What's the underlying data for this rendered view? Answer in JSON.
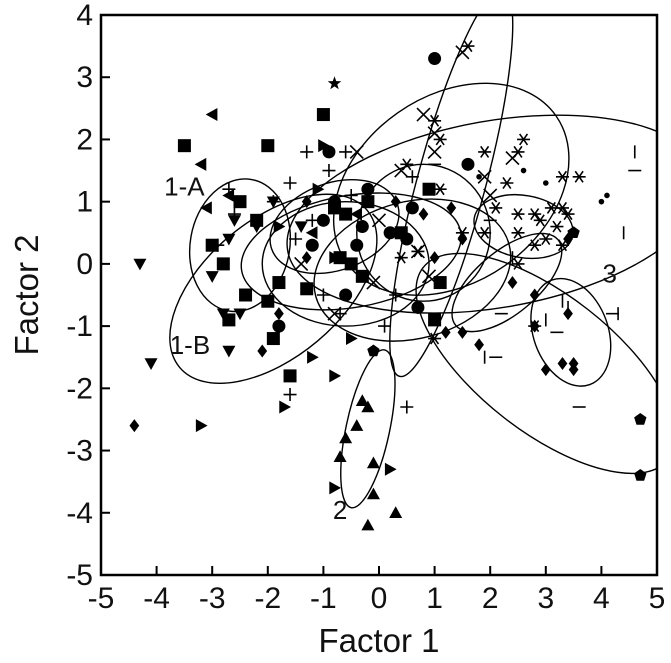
{
  "chart_data": {
    "type": "scatter",
    "xlabel": "Factor 1",
    "ylabel": "Factor 2",
    "xlim": [
      -5,
      5
    ],
    "ylim": [
      -5,
      4
    ],
    "xticks": [
      -5,
      -4,
      -3,
      -2,
      -1,
      0,
      1,
      2,
      3,
      4,
      5
    ],
    "yticks": [
      -5,
      -4,
      -3,
      -2,
      -1,
      0,
      1,
      2,
      3,
      4
    ],
    "grid": false,
    "legend": "none",
    "color": "#000000",
    "cluster_labels": [
      {
        "text": "1-A",
        "x": -3.5,
        "y": 1.1
      },
      {
        "text": "1-B",
        "x": -3.4,
        "y": -1.45
      },
      {
        "text": "2",
        "x": -0.7,
        "y": -4.1
      },
      {
        "text": "3",
        "x": 4.15,
        "y": -0.3
      }
    ],
    "ellipses": [
      {
        "cx": -2.5,
        "cy": 0.3,
        "rx": 1.2,
        "ry": 0.8,
        "angle": 80
      },
      {
        "cx": -1.9,
        "cy": -0.4,
        "rx": 2.2,
        "ry": 1.1,
        "angle": 40
      },
      {
        "cx": -0.8,
        "cy": 0.6,
        "rx": 1.2,
        "ry": 0.7,
        "angle": 20
      },
      {
        "cx": -0.5,
        "cy": 0.2,
        "rx": 2.0,
        "ry": 0.9,
        "angle": 10
      },
      {
        "cx": -0.6,
        "cy": 0.0,
        "rx": 1.5,
        "ry": 1.0,
        "angle": 0
      },
      {
        "cx": -0.2,
        "cy": -2.65,
        "rx": 1.45,
        "ry": 0.35,
        "angle": 78
      },
      {
        "cx": 1.3,
        "cy": 1.3,
        "rx": 3.6,
        "ry": 0.55,
        "angle": 75
      },
      {
        "cx": 1.3,
        "cy": 1.2,
        "rx": 2.3,
        "ry": 1.5,
        "angle": 35
      },
      {
        "cx": 2.1,
        "cy": 0.8,
        "rx": 3.8,
        "ry": 1.5,
        "angle": 10
      },
      {
        "cx": 0.8,
        "cy": 0.5,
        "rx": 1.2,
        "ry": 1.1,
        "angle": 0
      },
      {
        "cx": 0.6,
        "cy": -0.1,
        "rx": 1.8,
        "ry": 1.1,
        "angle": 15
      },
      {
        "cx": 3.0,
        "cy": -1.6,
        "rx": 2.8,
        "ry": 1.1,
        "angle": -38
      },
      {
        "cx": 3.45,
        "cy": -1.1,
        "rx": 1.0,
        "ry": 0.6,
        "angle": -70
      },
      {
        "cx": 2.3,
        "cy": -0.3,
        "rx": 1.2,
        "ry": 0.5,
        "angle": 40
      },
      {
        "cx": 2.6,
        "cy": 0.6,
        "rx": 0.9,
        "ry": 0.5,
        "angle": -10
      }
    ],
    "series": [
      {
        "marker": "square",
        "points": [
          [
            -3.5,
            1.9
          ],
          [
            -2,
            1.9
          ],
          [
            -1,
            2.4
          ],
          [
            -2.5,
            1.0
          ],
          [
            -3,
            0.3
          ],
          [
            -2.8,
            0.0
          ],
          [
            -2.4,
            -0.5
          ],
          [
            -2,
            -0.6
          ],
          [
            -1.8,
            -0.3
          ],
          [
            -1.3,
            -0.4
          ],
          [
            -0.8,
            0.9
          ],
          [
            -0.6,
            0.8
          ],
          [
            -0.2,
            1.0
          ],
          [
            0.4,
            0.5
          ],
          [
            0.9,
            1.2
          ],
          [
            1.1,
            -0.3
          ],
          [
            1,
            -0.9
          ],
          [
            -1.6,
            -1.8
          ],
          [
            -2.7,
            -0.9
          ],
          [
            -0.5,
            0.0
          ],
          [
            -0.3,
            -0.2
          ],
          [
            -1.9,
            -1.2
          ],
          [
            -2.2,
            0.7
          ],
          [
            -0.7,
            0.1
          ]
        ]
      },
      {
        "marker": "circle",
        "points": [
          [
            1.0,
            3.3
          ],
          [
            1.6,
            1.6
          ],
          [
            -0.9,
            1.8
          ],
          [
            -0.3,
            0.6
          ],
          [
            0.6,
            0.9
          ],
          [
            -0.8,
            1.0
          ],
          [
            -1.2,
            0.3
          ],
          [
            -0.6,
            -0.5
          ],
          [
            0.7,
            -0.7
          ],
          [
            -1.8,
            -1.0
          ],
          [
            -0.2,
            1.2
          ],
          [
            -1,
            0.7
          ],
          [
            -0.4,
            0.3
          ],
          [
            0.2,
            0.5
          ],
          [
            0.5,
            0.4
          ]
        ]
      },
      {
        "marker": "star",
        "points": [
          [
            -0.8,
            2.9
          ]
        ]
      },
      {
        "marker": "triangle-left",
        "points": [
          [
            -3,
            2.4
          ],
          [
            -3.2,
            1.6
          ],
          [
            -3.1,
            0.9
          ],
          [
            -2.7,
            1.1
          ],
          [
            -0.4,
            0.8
          ],
          [
            -1.2,
            0.5
          ]
        ]
      },
      {
        "marker": "triangle-right",
        "points": [
          [
            -1.0,
            1.9
          ],
          [
            -1.1,
            1.2
          ],
          [
            -1.8,
            0.6
          ],
          [
            -0.8,
            0.1
          ],
          [
            -1.2,
            -1.5
          ],
          [
            -0.8,
            -1.8
          ],
          [
            -1.7,
            -2.3
          ],
          [
            -3.2,
            -2.6
          ],
          [
            0.2,
            -3.3
          ],
          [
            -0.8,
            -3.6
          ],
          [
            -0.5,
            -1.2
          ]
        ]
      },
      {
        "marker": "triangle-down",
        "points": [
          [
            -4.3,
            0.0
          ],
          [
            -4.1,
            -1.6
          ],
          [
            -3,
            -0.2
          ],
          [
            -2.7,
            0.4
          ],
          [
            -2.6,
            0.7
          ],
          [
            -2.2,
            0.6
          ],
          [
            -2.8,
            -0.8
          ],
          [
            -2.5,
            -0.8
          ],
          [
            -2.7,
            -1.4
          ],
          [
            -1.4,
            0.6
          ],
          [
            -1.9,
            1.0
          ]
        ]
      },
      {
        "marker": "triangle-up",
        "points": [
          [
            -0.3,
            -2.2
          ],
          [
            -0.2,
            -2.3
          ],
          [
            -0.6,
            -2.8
          ],
          [
            -0.4,
            -2.6
          ],
          [
            -0.7,
            -3.1
          ],
          [
            -0.1,
            -3.2
          ],
          [
            -0.1,
            -3.7
          ],
          [
            0.3,
            -4.0
          ],
          [
            -0.2,
            -4.2
          ]
        ]
      },
      {
        "marker": "diamond",
        "points": [
          [
            -4.4,
            -2.6
          ],
          [
            -1.3,
            1.0
          ],
          [
            -2.1,
            -1.4
          ],
          [
            -1.8,
            -0.8
          ],
          [
            -1.3,
            0.1
          ],
          [
            0.8,
            0.8
          ],
          [
            1.0,
            0.1
          ],
          [
            1.3,
            0.9
          ],
          [
            1.5,
            0.4
          ],
          [
            1.5,
            -1.1
          ],
          [
            2.4,
            -0.3
          ],
          [
            2.8,
            -1.0
          ],
          [
            3.0,
            -1.7
          ],
          [
            3.3,
            -1.6
          ],
          [
            3.5,
            -1.6
          ],
          [
            3.5,
            -1.7
          ],
          [
            3.4,
            -0.8
          ],
          [
            3.4,
            0.4
          ],
          [
            2.8,
            -0.5
          ],
          [
            1.8,
            -1.3
          ],
          [
            1.2,
            -1.1
          ],
          [
            0.3,
            1.0
          ]
        ]
      },
      {
        "marker": "pentagon",
        "points": [
          [
            4.7,
            -2.5
          ],
          [
            4.7,
            -3.4
          ],
          [
            -0.1,
            -1.4
          ],
          [
            3.5,
            0.5
          ]
        ]
      },
      {
        "marker": "plus",
        "points": [
          [
            -2.7,
            1.2
          ],
          [
            -2.6,
            0.8
          ],
          [
            -1.9,
            1.0
          ],
          [
            -1.6,
            1.3
          ],
          [
            -1.3,
            1.8
          ],
          [
            -0.9,
            1.5
          ],
          [
            -0.6,
            1.8
          ],
          [
            -1.2,
            0.7
          ],
          [
            -1.5,
            0.4
          ],
          [
            -1.0,
            -0.5
          ],
          [
            -0.7,
            -0.8
          ],
          [
            -1.6,
            -2.1
          ],
          [
            0.5,
            -2.3
          ],
          [
            0.1,
            -1.0
          ],
          [
            0.3,
            -0.5
          ],
          [
            0.6,
            1.4
          ],
          [
            -0.5,
            1.1
          ],
          [
            -2.9,
            0.3
          ]
        ]
      },
      {
        "marker": "cross",
        "points": [
          [
            1.5,
            3.4
          ],
          [
            1.0,
            2.1
          ],
          [
            0.8,
            2.4
          ],
          [
            1.0,
            1.8
          ],
          [
            -0.4,
            1.8
          ],
          [
            0.4,
            1.5
          ],
          [
            1.9,
            1.4
          ],
          [
            2.0,
            1.1
          ],
          [
            2.4,
            1.7
          ],
          [
            0.0,
            0.7
          ],
          [
            0.7,
            0.2
          ],
          [
            0.9,
            -0.2
          ],
          [
            -0.1,
            -0.3
          ],
          [
            -0.8,
            -0.8
          ],
          [
            -1.4,
            0.0
          ]
        ]
      },
      {
        "marker": "asterisk",
        "points": [
          [
            1.6,
            3.5
          ],
          [
            1.0,
            2.3
          ],
          [
            1.1,
            2.0
          ],
          [
            2.6,
            2.0
          ],
          [
            2.5,
            1.8
          ],
          [
            1.9,
            1.8
          ],
          [
            0.5,
            1.6
          ],
          [
            1.1,
            1.2
          ],
          [
            2.3,
            1.3
          ],
          [
            2.1,
            0.9
          ],
          [
            2.5,
            0.8
          ],
          [
            2.5,
            0.5
          ],
          [
            1.9,
            0.5
          ],
          [
            1.5,
            0.5
          ],
          [
            3.3,
            1.4
          ],
          [
            3.6,
            1.4
          ],
          [
            3.1,
            0.9
          ],
          [
            3.3,
            0.9
          ],
          [
            2.8,
            0.8
          ],
          [
            2.9,
            0.7
          ],
          [
            2.8,
            -1.0
          ],
          [
            2.5,
            0.0
          ],
          [
            2.8,
            0.3
          ],
          [
            3.0,
            0.4
          ],
          [
            3.3,
            0.3
          ],
          [
            3.2,
            0.6
          ],
          [
            3.4,
            0.8
          ],
          [
            0.7,
            0.2
          ],
          [
            0.4,
            0.1
          ],
          [
            1.0,
            -1.2
          ]
        ]
      },
      {
        "marker": "dash",
        "points": [
          [
            4.6,
            1.5
          ],
          [
            1.0,
            1.6
          ],
          [
            2.0,
            0.7
          ],
          [
            2.2,
            -0.8
          ],
          [
            3.2,
            -1.1
          ],
          [
            3.6,
            -2.3
          ],
          [
            2.1,
            -1.5
          ],
          [
            4.2,
            -0.8
          ]
        ]
      },
      {
        "marker": "vline",
        "points": [
          [
            4.6,
            1.8
          ],
          [
            4.4,
            0.5
          ],
          [
            2.4,
            0.1
          ],
          [
            3.3,
            -0.6
          ],
          [
            4.3,
            -0.8
          ],
          [
            3.4,
            -0.7
          ],
          [
            1.9,
            -1.5
          ],
          [
            3.0,
            -0.9
          ]
        ]
      },
      {
        "marker": "dot",
        "points": [
          [
            4.0,
            1.0
          ],
          [
            4.1,
            1.1
          ],
          [
            2.6,
            1.5
          ],
          [
            1.8,
            1.4
          ],
          [
            3.0,
            1.3
          ]
        ]
      }
    ]
  }
}
